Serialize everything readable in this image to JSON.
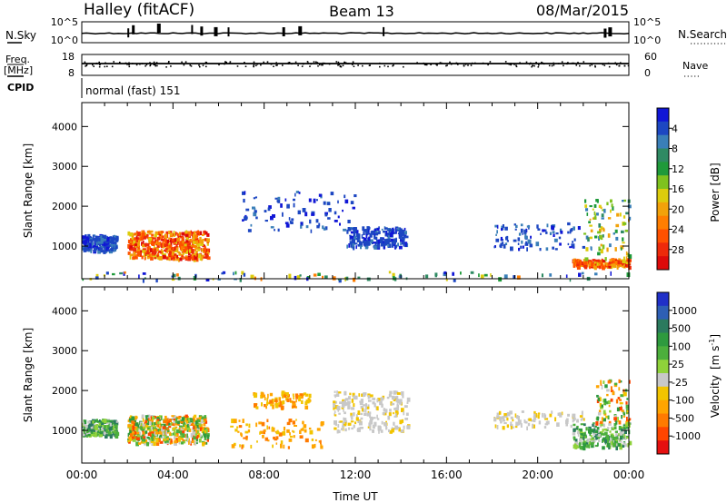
{
  "header": {
    "station": "Halley (fitACF)",
    "beam": "Beam 13",
    "date": "08/Mar/2015"
  },
  "top_panels": {
    "nsky_label": "N.Sky",
    "nsky_ticks": [
      "10^5",
      "10^0"
    ],
    "nsearch_label": "N.Search",
    "nsearch_ticks": [
      "10^5",
      "10^0"
    ],
    "freq_label": "Freq.",
    "freq_unit": "[MHz]",
    "freq_ticks": [
      "18",
      "8"
    ],
    "nave_label": "Nave",
    "nave_ticks": [
      "60",
      "0"
    ],
    "cpid_label": "CPID",
    "cpid_text": "normal (fast) 151",
    "colors": {
      "line": "#000000"
    }
  },
  "chart_data": [
    {
      "type": "heatmap",
      "title": "",
      "ylabel": "Slant Range [km]",
      "xlabel": "",
      "x_range_hours": [
        0,
        24
      ],
      "ylim_km": [
        180,
        4600
      ],
      "yticks": [
        "1000",
        "2000",
        "3000",
        "4000"
      ],
      "colorbar": {
        "label": "Power [dB]",
        "ticks": [
          "4",
          "8",
          "12",
          "16",
          "20",
          "24",
          "28"
        ],
        "colors": [
          "#1016d6",
          "#1d47c2",
          "#3a7fb8",
          "#2f8a63",
          "#1f9a3a",
          "#7fc21e",
          "#dccc0c",
          "#f2a20a",
          "#ff7e00",
          "#ff5100",
          "#ee2a0a",
          "#dd0a0a"
        ]
      },
      "scatter_regions": [
        {
          "x": [
            0.0,
            24.0
          ],
          "y": [
            180,
            380
          ],
          "value": "mixed-low",
          "density": "sparse"
        },
        {
          "x": [
            0.0,
            1.5
          ],
          "y": [
            900,
            1300
          ],
          "value": "low",
          "density": "medium"
        },
        {
          "x": [
            2.0,
            5.5
          ],
          "y": [
            700,
            1400
          ],
          "value": "high",
          "density": "dense"
        },
        {
          "x": [
            7.0,
            12.0
          ],
          "y": [
            1400,
            2400
          ],
          "value": "low",
          "density": "sparse"
        },
        {
          "x": [
            11.6,
            14.2
          ],
          "y": [
            1000,
            1500
          ],
          "value": "low",
          "density": "medium"
        },
        {
          "x": [
            18.0,
            22.0
          ],
          "y": [
            950,
            1600
          ],
          "value": "low",
          "density": "sparse"
        },
        {
          "x": [
            21.5,
            24.0
          ],
          "y": [
            500,
            700
          ],
          "value": "high",
          "density": "medium"
        },
        {
          "x": [
            22.0,
            24.0
          ],
          "y": [
            700,
            2200
          ],
          "value": "mid",
          "density": "sparse"
        }
      ]
    },
    {
      "type": "heatmap",
      "title": "",
      "ylabel": "Slant Range [km]",
      "xlabel": "Time UT",
      "x_range_hours": [
        0,
        24
      ],
      "xticks": [
        "00:00",
        "04:00",
        "08:00",
        "12:00",
        "16:00",
        "20:00",
        "00:00"
      ],
      "ylim_km": [
        180,
        4600
      ],
      "yticks": [
        "1000",
        "2000",
        "3000",
        "4000"
      ],
      "colorbar": {
        "label": "Velocity",
        "unit": "[m s",
        "unit_sup": "-1",
        "unit_close": "]",
        "ticks": [
          "1000",
          "500",
          "100",
          "25",
          "-25",
          "-100",
          "-500",
          "-1000"
        ],
        "colors": [
          "#2030c8",
          "#2e5fb5",
          "#2b7a5e",
          "#2e9a3e",
          "#4caf3c",
          "#8fd23a",
          "#c8c8c8",
          "#f2c400",
          "#ffa500",
          "#ff7a00",
          "#ff4500",
          "#e51010"
        ]
      },
      "scatter_regions": [
        {
          "x": [
            0.0,
            1.5
          ],
          "y": [
            900,
            1300
          ],
          "value": "positive",
          "density": "medium"
        },
        {
          "x": [
            2.0,
            5.5
          ],
          "y": [
            700,
            1400
          ],
          "value": "mixed",
          "density": "dense"
        },
        {
          "x": [
            6.5,
            10.5
          ],
          "y": [
            600,
            1300
          ],
          "value": "negative",
          "density": "sparse"
        },
        {
          "x": [
            7.5,
            10.0
          ],
          "y": [
            1600,
            2000
          ],
          "value": "negative",
          "density": "sparse"
        },
        {
          "x": [
            11.0,
            14.3
          ],
          "y": [
            1000,
            2000
          ],
          "value": "near-zero",
          "density": "medium"
        },
        {
          "x": [
            18.0,
            22.0
          ],
          "y": [
            1100,
            1500
          ],
          "value": "near-zero",
          "density": "sparse"
        },
        {
          "x": [
            21.5,
            24.0
          ],
          "y": [
            600,
            1200
          ],
          "value": "positive",
          "density": "medium"
        },
        {
          "x": [
            22.5,
            24.0
          ],
          "y": [
            1200,
            2300
          ],
          "value": "mixed",
          "density": "sparse"
        }
      ]
    }
  ]
}
